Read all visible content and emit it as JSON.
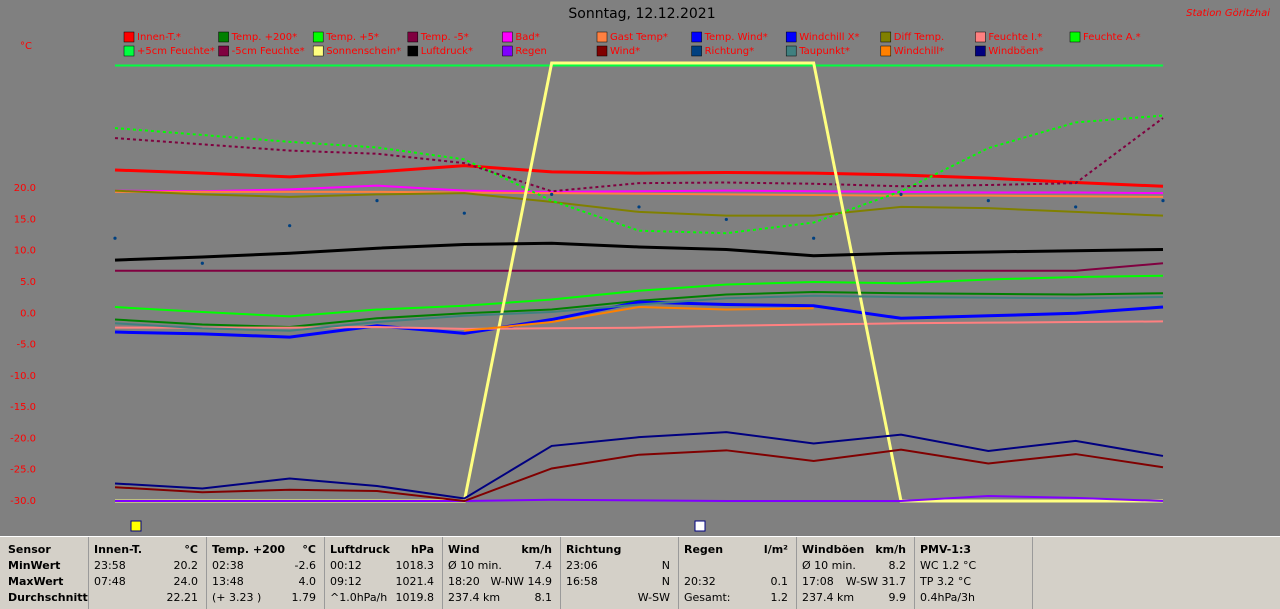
{
  "chart_data": {
    "type": "line",
    "title": "Sonntag, 12.12.2021",
    "station": "Station Göritzhai",
    "y_label": "°C",
    "ylim": [
      -30,
      40
    ],
    "yticks": [
      {
        "value": 20,
        "label": "20.0"
      },
      {
        "value": 15,
        "label": "15.0"
      },
      {
        "value": 10,
        "label": "10.0"
      },
      {
        "value": 5,
        "label": "5.0"
      },
      {
        "value": 0,
        "label": "0.0"
      },
      {
        "value": -5,
        "label": "-5.0"
      },
      {
        "value": -10,
        "label": "-10.0"
      },
      {
        "value": -15,
        "label": "-15.0"
      },
      {
        "value": -20,
        "label": "-20.0"
      },
      {
        "value": -25,
        "label": "-25.0"
      },
      {
        "value": -30,
        "label": "-30.0"
      }
    ],
    "grid": false,
    "series": [
      {
        "name": "Innen-T.*",
        "color": "#ff0000",
        "style": "thick",
        "values": [
          22.9,
          22.4,
          21.8,
          22.6,
          23.6,
          22.6,
          22.4,
          22.5,
          22.4,
          22.1,
          21.6,
          20.9,
          20.3
        ]
      },
      {
        "name": "Temp. +200*",
        "color": "#008000",
        "style": "solid",
        "values": [
          -1.0,
          -1.8,
          -2.2,
          -0.8,
          0.0,
          0.6,
          2.0,
          3.0,
          3.4,
          3.2,
          3.1,
          3.0,
          3.2
        ]
      },
      {
        "name": "Temp. +5*",
        "color": "#00ff00",
        "style": "solid",
        "values": [
          1.0,
          0.2,
          -0.5,
          0.6,
          1.2,
          2.2,
          3.6,
          4.6,
          5.0,
          4.8,
          5.4,
          5.8,
          6.0
        ]
      },
      {
        "name": "Temp. -5*",
        "color": "#800040",
        "style": "solid",
        "values": [
          6.8,
          6.8,
          6.8,
          6.8,
          6.8,
          6.8,
          6.8,
          6.8,
          6.8,
          6.8,
          6.8,
          6.8,
          8.0
        ]
      },
      {
        "name": "Bad*",
        "color": "#ff00ff",
        "style": "solid",
        "values": [
          19.6,
          19.5,
          19.8,
          20.4,
          19.6,
          19.4,
          19.5,
          19.6,
          19.5,
          19.4,
          19.3,
          19.3,
          19.2
        ]
      },
      {
        "name": "Gast Temp*",
        "color": "#ff8040",
        "style": "solid",
        "values": [
          19.4,
          19.4,
          19.4,
          19.4,
          19.3,
          19.2,
          19.1,
          19.0,
          18.9,
          18.8,
          18.8,
          18.7,
          18.6
        ]
      },
      {
        "name": "Temp. Wind*",
        "color": "#0000ff",
        "style": "thick",
        "values": [
          -3.0,
          -3.3,
          -3.8,
          -2.0,
          -3.2,
          -1.0,
          1.8,
          1.4,
          1.2,
          -0.8,
          -0.4,
          0.0,
          1.0
        ]
      },
      {
        "name": "Windchill X*",
        "color": "#0000ff",
        "style": "solid",
        "values": [
          -3.0,
          -3.3,
          -3.8,
          -2.0,
          -3.2,
          -1.0,
          1.8,
          1.4,
          1.2,
          -0.8,
          -0.4,
          0.0,
          1.0
        ]
      },
      {
        "name": "Diff Temp.",
        "color": "#808000",
        "style": "solid",
        "values": [
          19.6,
          19.0,
          18.6,
          19.0,
          19.2,
          17.8,
          16.2,
          15.6,
          15.6,
          17.0,
          16.8,
          16.2,
          15.6
        ]
      },
      {
        "name": "Feuchte I.*",
        "color": "#ff8080",
        "style": "solid",
        "values": [
          -2.3,
          -2.3,
          -2.3,
          -2.2,
          -2.5,
          -2.4,
          -2.3,
          -2.0,
          -1.8,
          -1.6,
          -1.5,
          -1.4,
          -1.3
        ]
      },
      {
        "name": "Feuchte A.*",
        "color": "#00ff00",
        "style": "dashed",
        "values": [
          29.6,
          28.5,
          27.4,
          26.5,
          24.6,
          18.0,
          13.2,
          12.8,
          14.5,
          19.5,
          26.4,
          30.5,
          31.6
        ]
      },
      {
        "name": "+5cm Feuchte*",
        "color": "#00ff40",
        "style": "solid",
        "values": [
          39.6,
          39.6,
          39.6,
          39.6,
          39.6,
          39.6,
          39.6,
          39.6,
          39.6,
          39.6,
          39.6,
          39.6,
          39.6
        ]
      },
      {
        "name": "-5cm Feuchte*",
        "color": "#800040",
        "style": "dashed",
        "values": [
          28.0,
          27.0,
          26.0,
          25.5,
          24.0,
          19.5,
          20.8,
          20.9,
          20.7,
          20.3,
          20.5,
          20.8,
          31.2
        ]
      },
      {
        "name": "Sonnenschein*",
        "color": "#ffff80",
        "style": "thick",
        "values": [
          -30,
          -30,
          -30,
          -30,
          -30,
          40,
          40,
          40,
          40,
          -30,
          -30,
          -30,
          -30
        ]
      },
      {
        "name": "Luftdruck*",
        "color": "#000000",
        "style": "thick",
        "values": [
          8.5,
          9.0,
          9.6,
          10.4,
          11.0,
          11.2,
          10.6,
          10.2,
          9.2,
          9.6,
          9.8,
          10.0,
          10.2
        ]
      },
      {
        "name": "Regen",
        "color": "#8000ff",
        "style": "solid",
        "values": [
          -30,
          -30,
          -30,
          -30,
          -30,
          -29.8,
          -29.9,
          -30,
          -30,
          -30,
          -29.2,
          -29.5,
          -30
        ]
      },
      {
        "name": "Wind*",
        "color": "#800000",
        "style": "solid",
        "values": [
          -27.8,
          -28.6,
          -28.2,
          -28.4,
          -30,
          -24.8,
          -22.6,
          -21.9,
          -23.6,
          -21.8,
          -24.0,
          -22.5,
          -24.6
        ]
      },
      {
        "name": "Richtung*",
        "color": "#004080",
        "style": "dots",
        "values": [
          12,
          8,
          14,
          18,
          16,
          19,
          17,
          15,
          12,
          19,
          18,
          17,
          18
        ]
      },
      {
        "name": "Taupunkt*",
        "color": "#408080",
        "style": "solid",
        "values": [
          -1.6,
          -2.4,
          -2.8,
          -1.4,
          -0.4,
          0.2,
          1.4,
          2.4,
          2.8,
          2.6,
          2.5,
          2.4,
          2.6
        ]
      },
      {
        "name": "Windchill*",
        "color": "#ff8000",
        "style": "solid",
        "values": [
          null,
          null,
          null,
          null,
          -2.8,
          -1.4,
          1.0,
          0.6,
          0.8,
          null,
          null,
          null,
          null
        ]
      },
      {
        "name": "Windböen*",
        "color": "#000080",
        "style": "solid",
        "values": [
          -27.2,
          -28.0,
          -26.4,
          -27.6,
          -29.6,
          -21.2,
          -19.8,
          -19.0,
          -20.8,
          -19.4,
          -22.0,
          -20.4,
          -22.8
        ]
      }
    ]
  },
  "table": {
    "sections": [
      {
        "header": [
          "Sensor",
          null
        ],
        "rows": [
          [
            "MinWert",
            null
          ],
          [
            "MaxWert",
            null
          ],
          [
            "Durchschnitt",
            null
          ]
        ]
      },
      {
        "header": [
          "Innen-T.",
          "°C"
        ],
        "rows": [
          [
            "23:58",
            "20.2"
          ],
          [
            "07:48",
            "24.0"
          ],
          [
            null,
            "22.21"
          ]
        ]
      },
      {
        "header": [
          "Temp. +200",
          "°C"
        ],
        "rows": [
          [
            "02:38",
            "-2.6"
          ],
          [
            "13:48",
            "4.0"
          ],
          [
            "(+ 3.23 )",
            "1.79"
          ]
        ]
      },
      {
        "header": [
          "Luftdruck",
          "hPa"
        ],
        "rows": [
          [
            "00:12",
            "1018.3"
          ],
          [
            "09:12",
            "1021.4"
          ],
          [
            "^1.0hPa/h",
            "1019.8"
          ]
        ]
      },
      {
        "header": [
          "Wind",
          "km/h"
        ],
        "rows": [
          [
            "Ø 10 min.",
            "7.4"
          ],
          [
            "18:20",
            "W-NW 14.9"
          ],
          [
            "237.4 km",
            "8.1"
          ]
        ]
      },
      {
        "header": [
          "Richtung",
          null
        ],
        "rows": [
          [
            "23:06",
            "N"
          ],
          [
            "16:58",
            "N"
          ],
          [
            null,
            "W-SW"
          ]
        ]
      },
      {
        "header": [
          "Regen",
          "l/m²"
        ],
        "rows": [
          [
            null,
            null
          ],
          [
            "20:32",
            "0.1"
          ],
          [
            "Gesamt:",
            "1.2"
          ]
        ]
      },
      {
        "header": [
          "Windböen",
          "km/h"
        ],
        "rows": [
          [
            "Ø 10 min.",
            "8.2"
          ],
          [
            "17:08",
            "W-SW 31.7"
          ],
          [
            "237.4 km",
            "9.9"
          ]
        ]
      },
      {
        "header": [
          "PMV-1:3",
          null
        ],
        "rows": [
          [
            "WC 1.2 °C",
            null
          ],
          [
            "TP 3.2 °C",
            null
          ],
          [
            "0.4hPa/3h",
            null
          ]
        ]
      }
    ]
  }
}
